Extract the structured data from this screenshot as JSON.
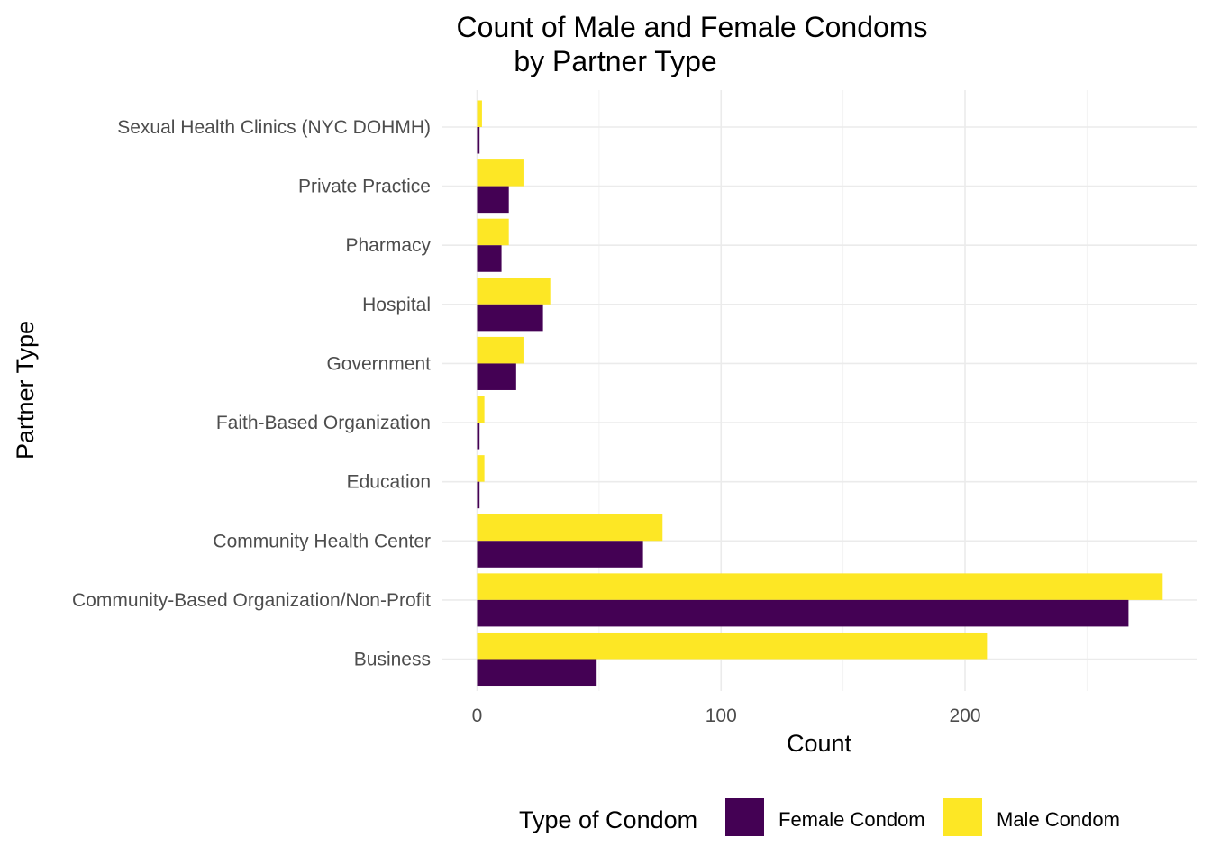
{
  "chart_data": {
    "type": "bar",
    "orientation": "horizontal",
    "title_lines": [
      "Count of Male and Female Condoms",
      "by Partner Type"
    ],
    "xlabel": "Count",
    "ylabel": "Partner Type",
    "categories": [
      "Business",
      "Community-Based Organization/Non-Profit",
      "Community Health Center",
      "Education",
      "Faith-Based Organization",
      "Government",
      "Hospital",
      "Pharmacy",
      "Private Practice",
      "Sexual Health Clinics (NYC DOHMH)"
    ],
    "series": [
      {
        "name": "Female Condom",
        "color": "#440154",
        "values": [
          49,
          267,
          68,
          1,
          1,
          16,
          27,
          10,
          13,
          1
        ]
      },
      {
        "name": "Male Condom",
        "color": "#FDE725",
        "values": [
          209,
          281,
          76,
          3,
          3,
          19,
          30,
          13,
          19,
          2
        ]
      }
    ],
    "xlim": [
      0,
      295
    ],
    "xticks": [
      0,
      100,
      200
    ],
    "xtick_labels": [
      "0",
      "100",
      "200"
    ],
    "grid": true,
    "legend": {
      "title": "Type of Condom",
      "position": "bottom"
    }
  }
}
